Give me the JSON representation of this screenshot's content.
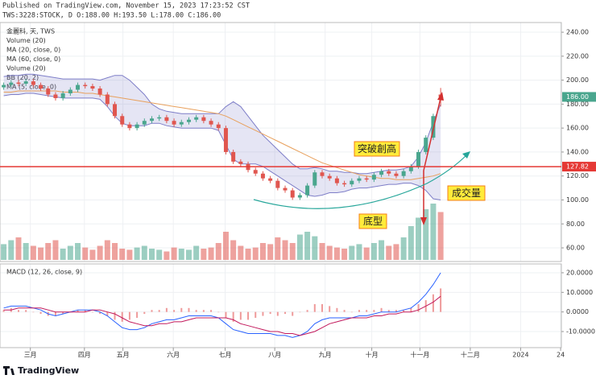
{
  "header": {
    "published": "Published on TradingView.com, November 15, 2023 17:23:52 CST",
    "symbol_line": "TWS:3228:STOCK, D O:188.00 H:193.50 L:178.00 C:186.00"
  },
  "footer": {
    "logo": "TradingView"
  },
  "chart_data": {
    "type": "candlestick",
    "legend": [
      "金麗科, 天, TWS",
      "Volume (20)",
      "MA (20, close, 0)",
      "MA (60, close, 0)",
      "Volume (20)",
      "BB (20, 2)",
      "MA (5, close, 0)"
    ],
    "open": [
      194,
      196,
      198,
      197,
      199,
      196,
      193,
      188,
      185,
      189,
      192,
      196,
      195,
      193,
      188,
      180,
      170,
      163,
      160,
      163,
      166,
      168,
      169,
      166,
      163,
      165,
      167,
      169,
      166,
      163,
      160,
      140,
      132,
      130,
      125,
      122,
      118,
      116,
      110,
      108,
      102,
      104,
      112,
      123,
      120,
      118,
      114,
      113,
      116,
      118,
      117,
      121,
      124,
      122,
      120,
      124,
      128,
      140,
      152,
      188
    ],
    "high": [
      198,
      200,
      200,
      201,
      201,
      198,
      195,
      190,
      191,
      194,
      198,
      198,
      197,
      195,
      190,
      182,
      172,
      165,
      165,
      168,
      170,
      171,
      171,
      168,
      167,
      169,
      171,
      171,
      168,
      165,
      162,
      142,
      134,
      132,
      127,
      124,
      120,
      118,
      112,
      110,
      106,
      114,
      125,
      125,
      122,
      120,
      116,
      118,
      120,
      120,
      123,
      126,
      126,
      124,
      126,
      130,
      142,
      154,
      172,
      193.5
    ],
    "low": [
      192,
      194,
      195,
      195,
      194,
      191,
      186,
      183,
      183,
      187,
      190,
      193,
      191,
      186,
      178,
      168,
      161,
      158,
      158,
      161,
      164,
      166,
      164,
      161,
      161,
      163,
      165,
      164,
      161,
      158,
      138,
      130,
      128,
      123,
      120,
      116,
      114,
      108,
      106,
      100,
      100,
      102,
      110,
      118,
      116,
      112,
      111,
      111,
      114,
      115,
      115,
      119,
      120,
      118,
      118,
      122,
      126,
      138,
      150,
      178
    ],
    "close": [
      196,
      198,
      197,
      199,
      196,
      193,
      188,
      185,
      189,
      192,
      196,
      195,
      193,
      188,
      180,
      170,
      163,
      160,
      163,
      166,
      168,
      169,
      166,
      163,
      165,
      167,
      169,
      166,
      163,
      160,
      140,
      132,
      130,
      125,
      122,
      118,
      116,
      110,
      108,
      102,
      104,
      112,
      123,
      120,
      118,
      114,
      113,
      116,
      118,
      117,
      121,
      124,
      122,
      120,
      124,
      128,
      140,
      152,
      170,
      186
    ],
    "volume": [
      28,
      35,
      40,
      30,
      25,
      22,
      30,
      35,
      20,
      25,
      30,
      22,
      18,
      25,
      35,
      30,
      20,
      18,
      22,
      25,
      20,
      18,
      15,
      22,
      20,
      18,
      25,
      20,
      22,
      30,
      50,
      35,
      25,
      20,
      22,
      30,
      28,
      40,
      35,
      30,
      45,
      50,
      42,
      30,
      25,
      22,
      20,
      25,
      28,
      22,
      30,
      35,
      25,
      28,
      40,
      60,
      75,
      90,
      100,
      85
    ],
    "bb_upper": [
      203,
      204,
      204,
      205,
      205,
      204,
      203,
      202,
      201,
      201,
      201,
      201,
      201,
      200,
      202,
      204,
      204,
      200,
      194,
      188,
      180,
      176,
      174,
      173,
      172,
      172,
      172,
      172,
      172,
      172,
      178,
      182,
      178,
      170,
      162,
      154,
      148,
      142,
      136,
      130,
      126,
      126,
      127,
      126,
      124,
      124,
      123,
      123,
      122,
      122,
      123,
      124,
      125,
      125,
      126,
      128,
      136,
      148,
      165,
      180
    ],
    "bb_lower": [
      187,
      188,
      188,
      189,
      189,
      188,
      187,
      186,
      185,
      185,
      185,
      185,
      185,
      184,
      178,
      170,
      164,
      162,
      162,
      162,
      164,
      164,
      162,
      161,
      160,
      160,
      160,
      160,
      160,
      158,
      146,
      134,
      130,
      130,
      130,
      128,
      124,
      120,
      116,
      112,
      108,
      104,
      103,
      104,
      106,
      106,
      107,
      109,
      110,
      110,
      111,
      112,
      113,
      113,
      114,
      114,
      112,
      108,
      101,
      100
    ],
    "ma60": [
      190,
      190,
      191,
      191,
      191,
      191,
      191,
      191,
      190,
      190,
      190,
      189,
      189,
      188,
      187,
      186,
      185,
      184,
      183,
      182,
      181,
      180,
      179,
      178,
      177,
      176,
      175,
      174,
      173,
      172,
      170,
      167,
      164,
      161,
      158,
      155,
      152,
      149,
      146,
      143,
      140,
      137,
      134,
      131,
      129,
      127,
      125,
      123,
      121,
      120,
      119,
      118,
      118,
      117,
      117,
      117,
      118,
      119,
      120,
      122
    ],
    "up_color": "#4aa68e",
    "down_color": "#e0564f",
    "band_color": "#7e7ec8",
    "ma_color": "#e8a05c",
    "xlim": [
      -0.5,
      75.3
    ],
    "xticks": [
      {
        "value": 3.6,
        "label": "三月"
      },
      {
        "value": 10.9,
        "label": "四月"
      },
      {
        "value": 16.1,
        "label": "五月"
      },
      {
        "value": 22.9,
        "label": "六月"
      },
      {
        "value": 29.9,
        "label": "七月"
      },
      {
        "value": 36.6,
        "label": "八月"
      },
      {
        "value": 43.4,
        "label": "九月"
      },
      {
        "value": 49.7,
        "label": "十月"
      },
      {
        "value": 56.2,
        "label": "十一月"
      },
      {
        "value": 63,
        "label": "十二月"
      },
      {
        "value": 69.8,
        "label": "2024"
      },
      {
        "value": 75.2,
        "label": "24"
      }
    ],
    "ylim": [
      48.6,
      248.1
    ],
    "yticks": [
      {
        "value": 240,
        "label": "240.00"
      },
      {
        "value": 220,
        "label": "220.00"
      },
      {
        "value": 200,
        "label": "200.00"
      },
      {
        "value": 180,
        "label": "180.00"
      },
      {
        "value": 160,
        "label": "160.00"
      },
      {
        "value": 140,
        "label": "140.00"
      },
      {
        "value": 120,
        "label": "120.00"
      },
      {
        "value": 100,
        "label": "100.00"
      },
      {
        "value": 80,
        "label": "80.00"
      },
      {
        "value": 60,
        "label": "60.00"
      }
    ],
    "last_price": {
      "value": 186,
      "label": "186.00"
    },
    "resistance": 127.82,
    "resistance_color": "#e53935",
    "grid": true,
    "annotations": [
      "突破創高",
      "成交量",
      "底型"
    ],
    "macd": {
      "title": "MACD (12, 26, close, 9)",
      "macd": [
        2,
        3,
        3,
        3,
        2,
        1,
        -1,
        -2,
        -1,
        0,
        1,
        1,
        1,
        0,
        -2,
        -5,
        -8,
        -9,
        -9,
        -8,
        -6,
        -5,
        -4,
        -4,
        -3,
        -2,
        -2,
        -2,
        -2,
        -3,
        -6,
        -9,
        -10,
        -11,
        -11,
        -11,
        -11,
        -12,
        -12,
        -13,
        -12,
        -10,
        -6,
        -4,
        -3,
        -3,
        -3,
        -3,
        -2,
        -2,
        -1,
        0,
        0,
        0,
        1,
        2,
        5,
        9,
        14,
        20
      ],
      "signal": [
        1,
        1,
        2,
        2,
        2,
        2,
        1,
        0,
        0,
        0,
        0,
        0,
        1,
        1,
        0,
        -1,
        -3,
        -5,
        -6,
        -7,
        -7,
        -6,
        -6,
        -5,
        -5,
        -4,
        -3,
        -3,
        -3,
        -3,
        -3,
        -4,
        -6,
        -7,
        -8,
        -9,
        -10,
        -10,
        -11,
        -11,
        -12,
        -11,
        -10,
        -8,
        -6,
        -5,
        -4,
        -3,
        -3,
        -3,
        -2,
        -2,
        -1,
        -1,
        0,
        0,
        1,
        3,
        5,
        8
      ],
      "macd_color": "#2962ff",
      "signal_color": "#c2185b",
      "hist_color": "#ef9a9a",
      "ylim": [
        -18.2,
        24.5
      ],
      "yticks": [
        {
          "value": 20,
          "label": "20.0000"
        },
        {
          "value": 10,
          "label": "10.0000"
        },
        {
          "value": 0,
          "label": "0.0000"
        },
        {
          "value": -10,
          "label": "-10.0000"
        }
      ]
    }
  }
}
